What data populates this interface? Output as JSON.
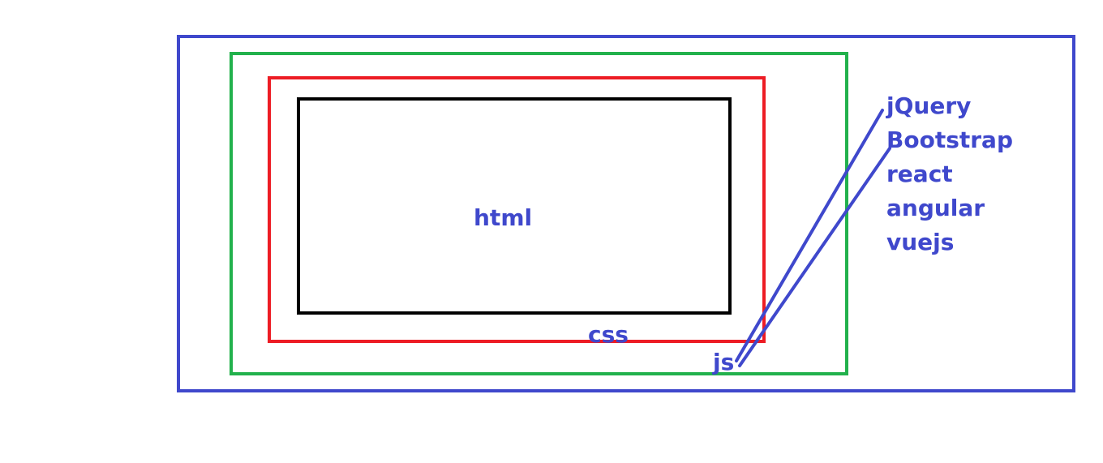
{
  "diagram": {
    "labels": {
      "html": "html",
      "css": "css",
      "js": "js"
    },
    "libraries": [
      "jQuery",
      "Bootstrap",
      "react",
      "angular",
      "vuejs"
    ],
    "colors": {
      "outer": "#3f48cc",
      "js_layer": "#22b14c",
      "css_layer": "#ed1c24",
      "html_layer": "#000000",
      "text": "#3f48cc"
    }
  }
}
